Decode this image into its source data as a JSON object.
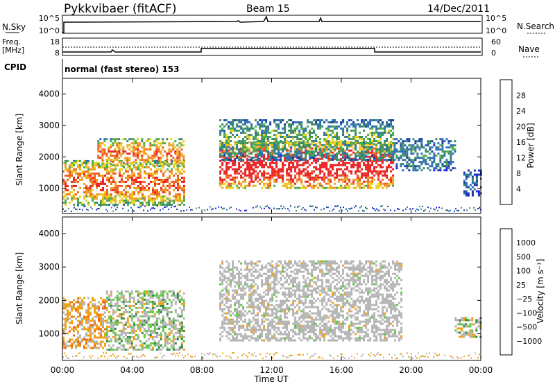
{
  "header": {
    "station": "Pykkvibaer (fitACF)",
    "beam": "Beam 15",
    "date": "14/Dec/2011"
  },
  "nsky_panel": {
    "left_label": "N.Sky",
    "left_ticks": [
      "10^5",
      "10^0"
    ],
    "right_label": "N.Search",
    "right_ticks": [
      "10^5",
      "10^0"
    ]
  },
  "freq_panel": {
    "left_label_1": "Freq.",
    "left_label_2": "[MHz]",
    "left_ticks": [
      "18",
      "8"
    ],
    "right_label": "Nave",
    "right_ticks": [
      "60",
      "0"
    ]
  },
  "cpid": {
    "label": "CPID",
    "mode": "normal (fast stereo) 153"
  },
  "colors": {
    "power": [
      "#1e1ef0",
      "#1a3c9e",
      "#2d6cb8",
      "#3a8a6e",
      "#4daa4d",
      "#e8d020",
      "#f0a020",
      "#f06020",
      "#e82020"
    ],
    "velocity": [
      "#e81414",
      "#f06414",
      "#f0a014",
      "#b4b4b4",
      "#b4b4b4",
      "#5ac83c",
      "#2d8c3c",
      "#28509c",
      "#1e32c8"
    ]
  },
  "chart_data": [
    {
      "type": "heatmap",
      "title": "Power",
      "ylabel": "Slant Range [km]",
      "xlabel": "",
      "x_ticks": [
        "00:00",
        "04:00",
        "08:00",
        "12:00",
        "16:00",
        "20:00",
        "00:00"
      ],
      "y_ticks": [
        "1000",
        "2000",
        "3000",
        "4000"
      ],
      "ylim": [
        200,
        4500
      ],
      "xlim_hours": [
        0,
        24
      ],
      "colorbar": {
        "label": "Power [dB]",
        "ticks": [
          "28",
          "24",
          "20",
          "16",
          "12",
          "8",
          "4"
        ]
      },
      "echo_regions": [
        {
          "t0": 0.0,
          "t1": 7.0,
          "r0": 500,
          "r1": 1900,
          "level": 0.75
        },
        {
          "t0": 2.0,
          "t1": 7.0,
          "r0": 1700,
          "r1": 2600,
          "level": 0.7
        },
        {
          "t0": 9.0,
          "t1": 19.0,
          "r0": 1000,
          "r1": 2500,
          "level": 0.95
        },
        {
          "t0": 9.0,
          "t1": 19.0,
          "r0": 1900,
          "r1": 3200,
          "level": 0.4
        },
        {
          "t0": 19.0,
          "t1": 22.5,
          "r0": 1600,
          "r1": 2600,
          "level": 0.3
        },
        {
          "t0": 23.0,
          "t1": 24.0,
          "r0": 800,
          "r1": 1600,
          "level": 0.2
        }
      ]
    },
    {
      "type": "heatmap",
      "title": "Velocity",
      "ylabel": "Slant Range [km]",
      "xlabel": "Time UT",
      "x_ticks": [
        "00:00",
        "04:00",
        "08:00",
        "12:00",
        "16:00",
        "20:00",
        "00:00"
      ],
      "y_ticks": [
        "1000",
        "2000",
        "3000",
        "4000"
      ],
      "ylim": [
        200,
        4500
      ],
      "xlim_hours": [
        0,
        24
      ],
      "colorbar": {
        "label": "Velocity [m s⁻¹]",
        "ticks": [
          "1000",
          "500",
          "100",
          "25",
          "−25",
          "−100",
          "−500",
          "−1000"
        ]
      },
      "echo_regions": [
        {
          "t0": 0.0,
          "t1": 2.5,
          "r0": 600,
          "r1": 2100,
          "class": "negative"
        },
        {
          "t0": 2.5,
          "t1": 7.0,
          "r0": 500,
          "r1": 2300,
          "class": "mixed"
        },
        {
          "t0": 9.0,
          "t1": 19.5,
          "r0": 800,
          "r1": 3200,
          "class": "near-zero"
        },
        {
          "t0": 22.5,
          "t1": 24.0,
          "r0": 900,
          "r1": 1500,
          "class": "mixed"
        }
      ]
    }
  ]
}
